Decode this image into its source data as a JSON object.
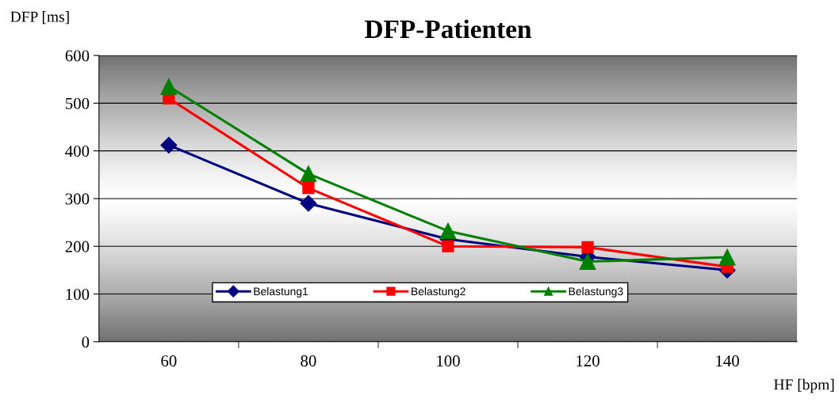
{
  "chart_data": {
    "type": "line",
    "title": "DFP-Patienten",
    "ylabel": "DFP [ms]",
    "xlabel": "HF [bpm]",
    "categories": [
      "60",
      "80",
      "100",
      "120",
      "140"
    ],
    "series": [
      {
        "name": "Belastung1",
        "color": "#000080",
        "marker": "diamond",
        "values": [
          412,
          290,
          215,
          178,
          150
        ]
      },
      {
        "name": "Belastung2",
        "color": "#ff0000",
        "marker": "square",
        "values": [
          510,
          322,
          200,
          198,
          157
        ]
      },
      {
        "name": "Belastung3",
        "color": "#008000",
        "marker": "triangle",
        "values": [
          535,
          352,
          232,
          168,
          177
        ]
      }
    ],
    "ylim": [
      0,
      600
    ],
    "yticks": [
      0,
      100,
      200,
      300,
      400,
      500,
      600
    ],
    "grid": "y",
    "legend": "bottom",
    "line_style": "solid"
  }
}
